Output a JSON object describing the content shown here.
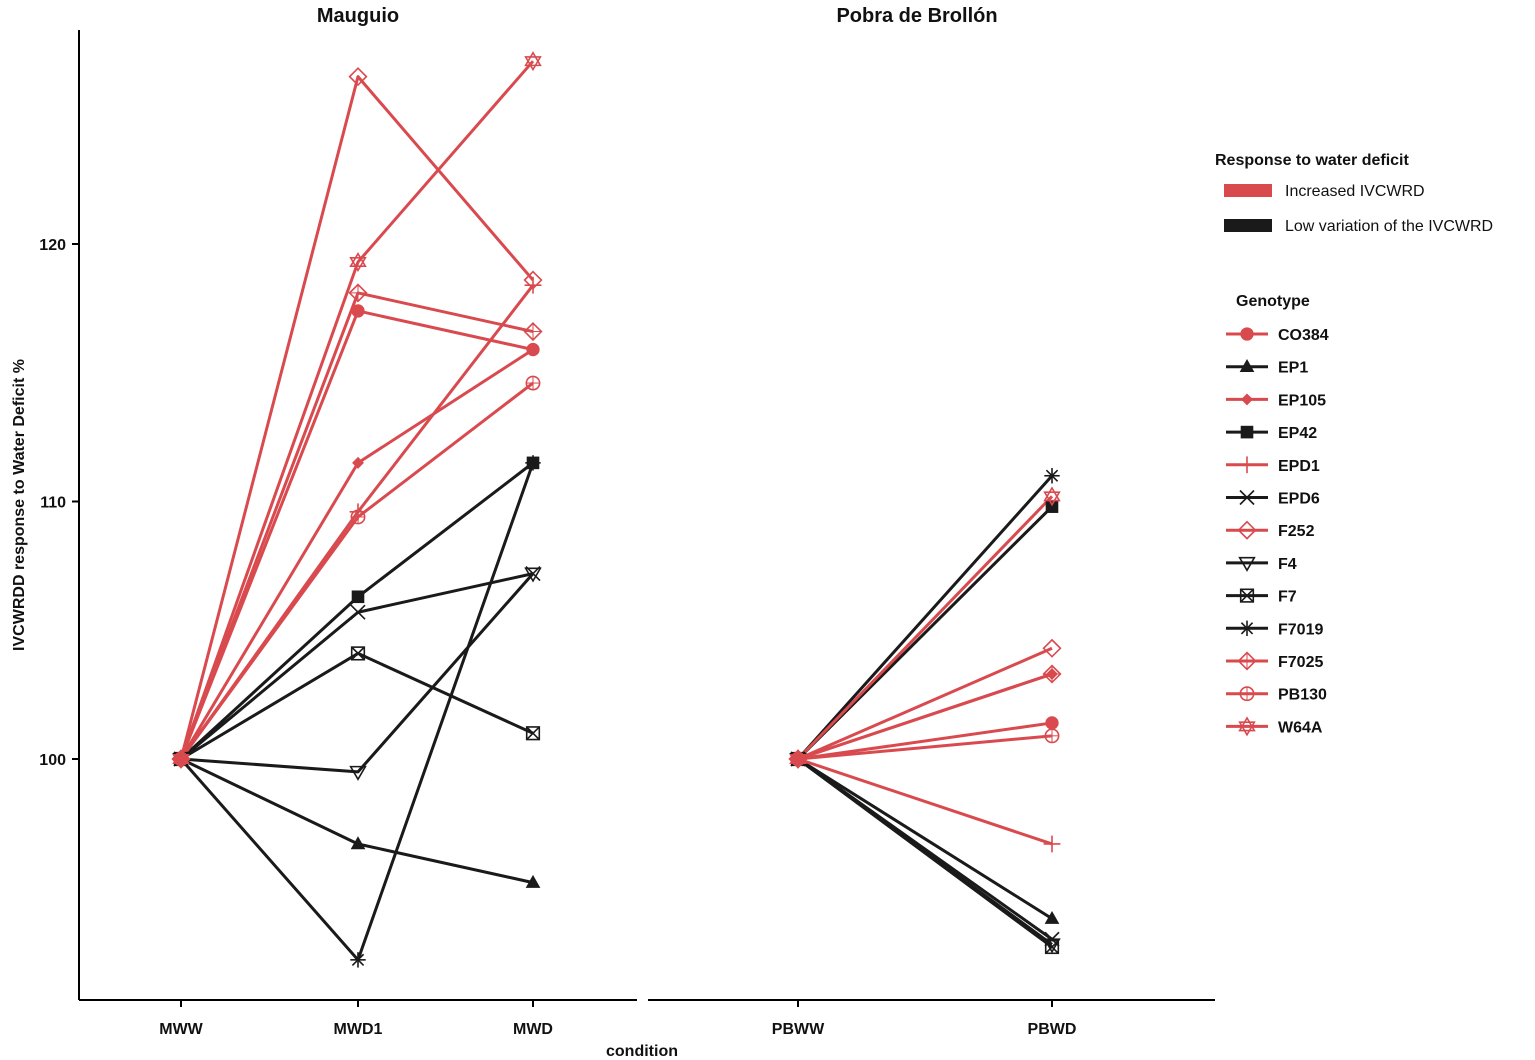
{
  "chart_data": {
    "type": "line",
    "ylabel": "IVCWRDD response to Water Deficit %",
    "xlabel": "condition",
    "ylim": [
      90.5,
      128.5
    ],
    "yticks": [
      100,
      110,
      120
    ],
    "colors": {
      "increased": "#d94a4f",
      "low": "#1a1a1a"
    },
    "legend_response": {
      "title": "Response to water deficit",
      "items": [
        {
          "label": "Increased IVCWRD",
          "group": "increased"
        },
        {
          "label": "Low variation  of the IVCWRD",
          "group": "low"
        }
      ]
    },
    "legend_genotype": {
      "title": "Genotype",
      "items": [
        {
          "label": "CO384",
          "shape": "circle",
          "group": "increased"
        },
        {
          "label": "EP1",
          "shape": "triangle",
          "group": "low"
        },
        {
          "label": "EP105",
          "shape": "diamond-filled",
          "group": "increased"
        },
        {
          "label": "EP42",
          "shape": "square",
          "group": "low"
        },
        {
          "label": "EPD1",
          "shape": "plus",
          "group": "increased"
        },
        {
          "label": "EPD6",
          "shape": "cross",
          "group": "low"
        },
        {
          "label": "F252",
          "shape": "diamond-open",
          "group": "increased"
        },
        {
          "label": "F4",
          "shape": "triangle-down-open",
          "group": "low"
        },
        {
          "label": "F7",
          "shape": "square-cross",
          "group": "low"
        },
        {
          "label": "F7019",
          "shape": "asterisk",
          "group": "low"
        },
        {
          "label": "F7025",
          "shape": "diamond-plus",
          "group": "increased"
        },
        {
          "label": "PB130",
          "shape": "circle-plus",
          "group": "increased"
        },
        {
          "label": "W64A",
          "shape": "star-of-david",
          "group": "increased"
        }
      ]
    },
    "facets": [
      {
        "title": "Mauguio",
        "categories": [
          "MWW",
          "MWD1",
          "MWD"
        ],
        "series": [
          {
            "name": "EP1",
            "values": [
              100,
              96.7,
              95.2
            ]
          },
          {
            "name": "EP42",
            "values": [
              100,
              106.3,
              111.5
            ]
          },
          {
            "name": "EPD6",
            "values": [
              100,
              105.7,
              107.2
            ]
          },
          {
            "name": "F4",
            "values": [
              100,
              99.5,
              107.2
            ]
          },
          {
            "name": "F7",
            "values": [
              100,
              104.1,
              101.0
            ]
          },
          {
            "name": "F7019",
            "values": [
              100,
              92.2,
              111.5
            ]
          },
          {
            "name": "CO384",
            "values": [
              100,
              117.4,
              115.9
            ]
          },
          {
            "name": "EP105",
            "values": [
              100,
              111.5,
              115.9
            ]
          },
          {
            "name": "EPD1",
            "values": [
              100,
              109.6,
              118.4
            ]
          },
          {
            "name": "F252",
            "values": [
              100,
              126.5,
              118.6
            ]
          },
          {
            "name": "F7025",
            "values": [
              100,
              118.1,
              116.6
            ]
          },
          {
            "name": "PB130",
            "values": [
              100,
              109.4,
              114.6
            ]
          },
          {
            "name": "W64A",
            "values": [
              100,
              119.3,
              127.1
            ]
          }
        ]
      },
      {
        "title": "Pobra de Brollón",
        "categories": [
          "PBWW",
          "PBWD"
        ],
        "series": [
          {
            "name": "EP1",
            "values": [
              100,
              93.8
            ]
          },
          {
            "name": "EP42",
            "values": [
              100,
              109.8
            ]
          },
          {
            "name": "EPD6",
            "values": [
              100,
              93.0
            ]
          },
          {
            "name": "F4",
            "values": [
              100,
              92.8
            ]
          },
          {
            "name": "F7",
            "values": [
              100,
              92.7
            ]
          },
          {
            "name": "F7019",
            "values": [
              100,
              111.0
            ]
          },
          {
            "name": "CO384",
            "values": [
              100,
              101.4
            ]
          },
          {
            "name": "EP105",
            "values": [
              100,
              103.3
            ]
          },
          {
            "name": "EPD1",
            "values": [
              100,
              96.7
            ]
          },
          {
            "name": "F252",
            "values": [
              100,
              104.3
            ]
          },
          {
            "name": "F7025",
            "values": [
              100,
              103.3
            ]
          },
          {
            "name": "PB130",
            "values": [
              100,
              100.9
            ]
          },
          {
            "name": "W64A",
            "values": [
              100,
              110.2
            ]
          }
        ]
      }
    ]
  }
}
